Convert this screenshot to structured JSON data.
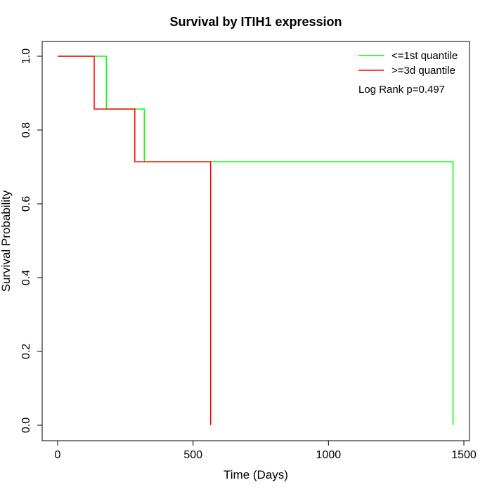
{
  "chart_data": {
    "type": "line",
    "subtype": "kaplan-meier-step",
    "title": "Survival by ITIH1 expression",
    "xlabel": "Time (Days)",
    "ylabel": "Survival Probability",
    "xlim": [
      0,
      1500
    ],
    "ylim": [
      0,
      1
    ],
    "x_ticks": [
      0,
      500,
      1000,
      1500
    ],
    "y_ticks": [
      0.0,
      0.2,
      0.4,
      0.6,
      0.8,
      1.0
    ],
    "x_tick_labels": [
      "0",
      "500",
      "1000",
      "1500"
    ],
    "y_tick_labels": [
      "0.0",
      "0.2",
      "0.4",
      "0.6",
      "0.8",
      "1.0"
    ],
    "series": [
      {
        "name": "<=1st quantile",
        "color": "#00ff00",
        "times": [
          0,
          180,
          320,
          1460
        ],
        "survival": [
          1.0,
          0.857,
          0.714,
          0.0
        ]
      },
      {
        "name": ">=3d quantile",
        "color": "#ff0000",
        "times": [
          0,
          135,
          285,
          565
        ],
        "survival": [
          1.0,
          0.857,
          0.714,
          0.0
        ]
      }
    ],
    "legend_position": "top-right",
    "annotation": "Log Rank p=0.497"
  }
}
